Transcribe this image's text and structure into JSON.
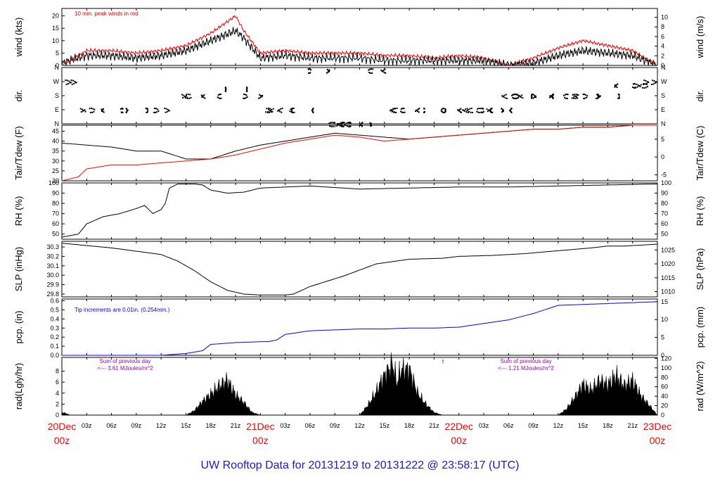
{
  "title": "UW Rooftop Data for 20131219  to  20131222 @ 23:58:17  (UTC)",
  "colors": {
    "main": "#000000",
    "red": "#ff0000",
    "blue": "#0000ff",
    "purple": "#a000c0",
    "title": "#0000cc"
  },
  "xaxis": {
    "hour_labels": [
      "03z",
      "06z",
      "09z",
      "12z",
      "15z",
      "18z",
      "21z",
      "03z",
      "06z",
      "09z",
      "12z",
      "15z",
      "18z",
      "21z",
      "03z",
      "06z",
      "09z",
      "12z",
      "15z",
      "18z",
      "21z"
    ],
    "day_labels": [
      {
        "date": "20Dec",
        "hour": "00z"
      },
      {
        "date": "21Dec",
        "hour": "00z"
      },
      {
        "date": "22Dec",
        "hour": "00z"
      },
      {
        "date": "23Dec",
        "hour": "00z"
      }
    ]
  },
  "panels": [
    {
      "id": "wind",
      "ylabel_left": "wind (kts)",
      "ylabel_right": "wind (m/s)",
      "left_ticks": [
        "0",
        "5",
        "10",
        "15",
        "20"
      ],
      "right_ticks": [
        "0",
        "2",
        "4",
        "6",
        "8",
        "10"
      ],
      "annotations": [
        "10 min. peak winds in red"
      ]
    },
    {
      "id": "dir",
      "ylabel_left": "dir.",
      "ylabel_right": "dir.",
      "left_ticks": [
        "N",
        "E",
        "S",
        "W",
        "N"
      ],
      "right_ticks": [
        "N",
        "E",
        "S",
        "W",
        "N"
      ]
    },
    {
      "id": "temp",
      "ylabel_left": "Tair/Tdew (F)",
      "ylabel_right": "Tair/Tdew (C)",
      "left_ticks": [
        "20",
        "25",
        "30",
        "35",
        "40",
        "45"
      ],
      "right_ticks": [
        "-5",
        "0",
        "5"
      ]
    },
    {
      "id": "rh",
      "ylabel_left": "RH (%)",
      "ylabel_right": "RH (%)",
      "left_ticks": [
        "50",
        "60",
        "70",
        "80",
        "90",
        "100"
      ],
      "right_ticks": [
        "50",
        "60",
        "70",
        "80",
        "90",
        "100"
      ]
    },
    {
      "id": "slp",
      "ylabel_left": "SLP (inHg)",
      "ylabel_right": "SLP (hPa)",
      "left_ticks": [
        "29.8",
        "29.9",
        "30.0",
        "30.1",
        "30.2",
        "30.3"
      ],
      "right_ticks": [
        "1010",
        "1015",
        "1020",
        "1025"
      ]
    },
    {
      "id": "pcp",
      "ylabel_left": "pcp. (in)",
      "ylabel_right": "pcp. (mm)",
      "left_ticks": [
        "0.0",
        "0.1",
        "0.2",
        "0.3",
        "0.4",
        "0.5",
        "0.6"
      ],
      "right_ticks": [
        "0",
        "5",
        "10",
        "15"
      ],
      "annotations": [
        "Tip increments are 0.01in. (0.254mm.)"
      ]
    },
    {
      "id": "rad",
      "ylabel_left": "rad(Lgly/hr)",
      "ylabel_right": "rad (W/m^2)",
      "left_ticks": [
        "0",
        "2",
        "4",
        "6",
        "8"
      ],
      "right_ticks": [
        "0",
        "20",
        "40",
        "60",
        "80",
        "100",
        "120"
      ],
      "annotations": [
        "Sum of previous day",
        "<--- 3.61 MJoules/m^2",
        "Sum of previous day",
        "<--- 1.21 MJoules/m^2",
        "f"
      ]
    }
  ],
  "chart_data": [
    {
      "type": "line",
      "panel": "wind",
      "x_hours_range": [
        0,
        72
      ],
      "ylim": [
        0,
        23
      ],
      "series": [
        {
          "name": "10 min. peak winds",
          "color": "#ff0000",
          "x": [
            0,
            3,
            6,
            9,
            12,
            15,
            18,
            21,
            22,
            24,
            27,
            30,
            33,
            36,
            39,
            42,
            45,
            48,
            51,
            54,
            57,
            60,
            63,
            66,
            69,
            72
          ],
          "values": [
            0,
            6,
            6,
            5,
            6,
            8,
            13,
            20,
            14,
            5,
            6,
            5,
            5,
            5,
            4,
            4,
            3,
            4,
            3,
            0,
            3,
            7,
            10,
            8,
            6,
            0
          ]
        },
        {
          "name": "wind",
          "color": "#000000",
          "x": [
            0,
            3,
            6,
            9,
            12,
            15,
            18,
            21,
            22,
            24,
            27,
            30,
            33,
            36,
            39,
            42,
            45,
            48,
            51,
            54,
            57,
            60,
            63,
            66,
            69,
            72
          ],
          "values": [
            1,
            4,
            4,
            3,
            4,
            6,
            10,
            14,
            11,
            3,
            4,
            3,
            3,
            3,
            2,
            2,
            2,
            2,
            2,
            0,
            1,
            4,
            6,
            5,
            4,
            0
          ]
        }
      ]
    },
    {
      "type": "scatter",
      "panel": "dir",
      "x_hours_range": [
        0,
        72
      ],
      "yticks": [
        "N",
        "E",
        "S",
        "W",
        "N"
      ],
      "series": [
        {
          "name": "direction",
          "color": "#000000",
          "x": [
            1,
            3,
            6,
            9,
            12,
            15,
            18,
            21,
            23,
            25,
            27,
            29,
            31,
            33,
            34,
            35,
            36,
            38,
            40,
            42,
            45,
            47,
            49,
            51,
            52,
            53,
            54,
            55,
            56,
            58,
            60,
            62,
            64,
            66,
            68,
            70,
            71
          ],
          "values": [
            "W",
            "E",
            "E",
            "E",
            "E",
            "S",
            "S",
            "SW",
            "S",
            "E",
            "E",
            "E",
            "NNW",
            "N",
            "N",
            "N",
            "N",
            "NNW",
            "E",
            "E",
            "E",
            "E",
            "E",
            "E",
            "E",
            "E",
            "S",
            "S",
            "S",
            "S",
            "S",
            "S",
            "S",
            "S",
            "WSW",
            "WSW",
            "W"
          ]
        }
      ]
    },
    {
      "type": "line",
      "panel": "temp",
      "x_hours_range": [
        0,
        72
      ],
      "ylim": [
        20,
        48
      ],
      "series": [
        {
          "name": "Tair",
          "color": "#000000",
          "x": [
            0,
            3,
            6,
            9,
            12,
            15,
            18,
            21,
            24,
            27,
            30,
            33,
            36,
            39,
            42,
            45,
            48,
            51,
            54,
            57,
            60,
            63,
            66,
            69,
            72
          ],
          "values": [
            39,
            38,
            37,
            35,
            35,
            31,
            31,
            35,
            38,
            40,
            42,
            44,
            43,
            42,
            41,
            42,
            43,
            44,
            45,
            46,
            46,
            47,
            47,
            48,
            48
          ]
        },
        {
          "name": "Tdew",
          "color": "#ff0000",
          "x": [
            0,
            2,
            3,
            6,
            9,
            12,
            15,
            18,
            21,
            24,
            27,
            30,
            33,
            36,
            39,
            42,
            45,
            48,
            51,
            54,
            57,
            60,
            63,
            66,
            69,
            72
          ],
          "values": [
            20,
            22,
            26,
            28,
            28,
            29,
            30,
            31,
            33,
            36,
            39,
            41,
            43,
            42,
            40,
            41,
            42,
            43,
            44,
            45,
            46,
            46,
            47,
            47,
            48,
            48
          ]
        }
      ]
    },
    {
      "type": "line",
      "panel": "rh",
      "x_hours_range": [
        0,
        72
      ],
      "ylim": [
        45,
        100
      ],
      "series": [
        {
          "name": "RH",
          "color": "#000000",
          "x": [
            0,
            2,
            3,
            5,
            7,
            9,
            10,
            11,
            12,
            12.5,
            13,
            14,
            15,
            16,
            17,
            18,
            20,
            22,
            24,
            30,
            36,
            42,
            48,
            54,
            60,
            66,
            72
          ],
          "values": [
            47,
            50,
            60,
            67,
            70,
            75,
            78,
            70,
            74,
            80,
            95,
            99,
            99,
            99,
            98,
            93,
            90,
            91,
            95,
            97,
            94,
            95,
            96,
            96,
            97,
            98,
            99
          ]
        }
      ]
    },
    {
      "type": "line",
      "panel": "slp",
      "x_hours_range": [
        0,
        72
      ],
      "ylim": [
        29.77,
        30.36
      ],
      "series": [
        {
          "name": "SLP",
          "color": "#000000",
          "x": [
            0,
            6,
            12,
            14,
            16,
            18,
            20,
            22,
            24,
            26,
            27,
            28,
            30,
            34,
            38,
            42,
            46,
            48,
            52,
            56,
            60,
            64,
            66,
            68,
            70,
            72
          ],
          "values": [
            30.34,
            30.29,
            30.22,
            30.15,
            30.05,
            29.93,
            29.84,
            29.8,
            29.79,
            29.79,
            29.79,
            29.8,
            29.88,
            29.99,
            30.12,
            30.17,
            30.18,
            30.2,
            30.21,
            30.23,
            30.26,
            30.29,
            30.31,
            30.31,
            30.32,
            30.33
          ]
        }
      ]
    },
    {
      "type": "line",
      "panel": "pcp",
      "x_hours_range": [
        0,
        72
      ],
      "ylim": [
        0,
        0.62
      ],
      "series": [
        {
          "name": "pcp",
          "color": "#0000ff",
          "x": [
            0,
            12,
            15,
            17,
            18,
            21,
            24,
            25,
            26,
            27,
            30,
            33,
            36,
            39,
            42,
            45,
            48,
            51,
            54,
            57,
            60,
            63,
            66,
            69,
            72
          ],
          "values": [
            0,
            0,
            0.02,
            0.05,
            0.12,
            0.14,
            0.15,
            0.15,
            0.17,
            0.23,
            0.27,
            0.28,
            0.29,
            0.29,
            0.3,
            0.3,
            0.31,
            0.35,
            0.39,
            0.46,
            0.55,
            0.56,
            0.57,
            0.58,
            0.59
          ]
        }
      ]
    },
    {
      "type": "area",
      "panel": "rad",
      "x_hours_range": [
        0,
        72
      ],
      "ylim": [
        0,
        10.5
      ],
      "series": [
        {
          "name": "rad",
          "color": "#000000",
          "x": [
            0,
            0.5,
            1,
            15,
            16,
            17,
            18,
            19,
            20,
            21,
            22,
            23,
            24,
            36,
            37,
            38,
            38.5,
            39,
            40,
            40.5,
            41,
            42,
            43,
            44,
            45,
            46,
            60,
            61,
            62,
            63,
            64,
            65,
            66,
            67,
            68,
            69,
            70,
            71,
            72
          ],
          "values": [
            0.5,
            0.3,
            0,
            0,
            0.8,
            2.5,
            3.8,
            5.2,
            6.3,
            3.7,
            2.3,
            0.5,
            0,
            0,
            1.8,
            4.2,
            5.8,
            7.2,
            9.4,
            5.8,
            8.3,
            8.4,
            4,
            2,
            0.5,
            0,
            0,
            1.1,
            3.2,
            5.6,
            4.5,
            6.2,
            5.5,
            7.2,
            5.3,
            6.3,
            3.5,
            1.8,
            0
          ]
        }
      ]
    }
  ]
}
